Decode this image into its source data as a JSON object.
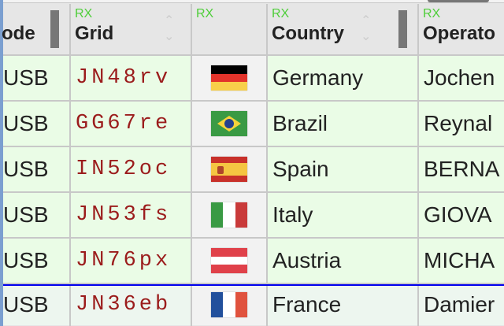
{
  "headers": {
    "mode": "ode",
    "grid": "Grid",
    "flag": "",
    "country": "Country",
    "operator": "Operato",
    "rx": "RX"
  },
  "rows": [
    {
      "mode": "USB",
      "grid": "JN48rv",
      "country": "Germany",
      "operator": "Jochen",
      "flag": [
        "#000000",
        "#e2332b",
        "#f8cf4a"
      ],
      "dir": "h"
    },
    {
      "mode": "USB",
      "grid": "GG67re",
      "country": "Brazil",
      "operator": "Reynal",
      "flag": "brazil"
    },
    {
      "mode": "USB",
      "grid": "IN52oc",
      "country": "Spain",
      "operator": "BERNA",
      "flag": "spain"
    },
    {
      "mode": "USB",
      "grid": "JN53fs",
      "country": "Italy",
      "operator": "GIOVA",
      "flag": [
        "#3a9a44",
        "#ffffff",
        "#c93a3a"
      ],
      "dir": "v"
    },
    {
      "mode": "USB",
      "grid": "JN76px",
      "country": "Austria",
      "operator": "MICHA",
      "flag": [
        "#e0414a",
        "#ffffff",
        "#e0414a"
      ],
      "dir": "h"
    },
    {
      "mode": "USB",
      "grid": "JN36eb",
      "country": "France",
      "operator": "Damier",
      "flag": [
        "#22509c",
        "#ffffff",
        "#e0523e"
      ],
      "dir": "v"
    }
  ],
  "colors": {
    "row_bg": "#eafce6",
    "last_row_bg": "#edf6ef",
    "flag_col_bg": "#f2f2f2",
    "selected_line": "#0000ee"
  }
}
